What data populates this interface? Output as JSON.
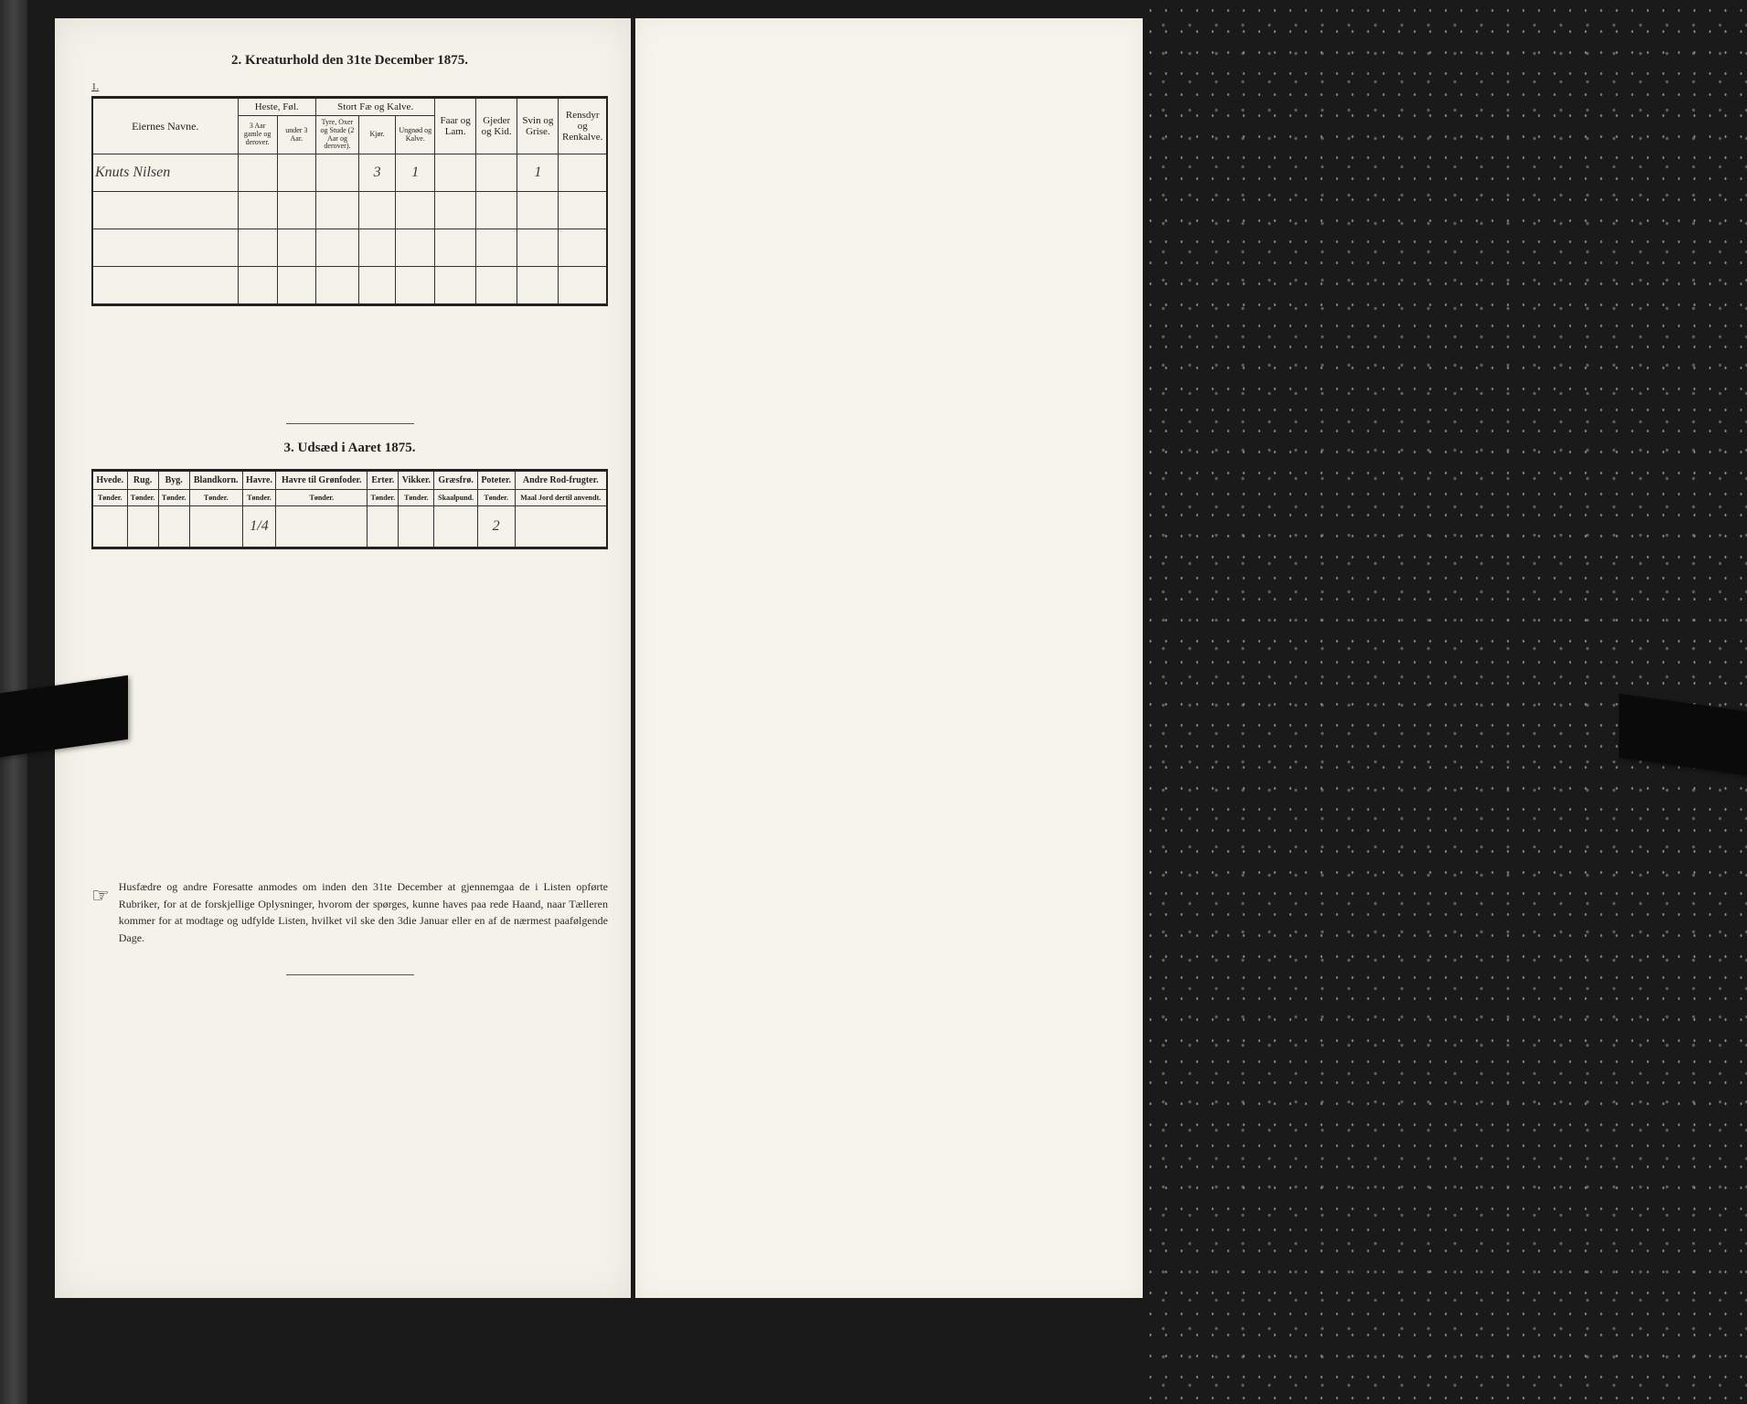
{
  "section2": {
    "title": "2.   Kreaturhold den 31te December 1875.",
    "corner": "1.",
    "headers": {
      "name": "Eiernes Navne.",
      "group_heste": "Heste, Føl.",
      "group_stort": "Stort Fæ og Kalve.",
      "heste_a": "3 Aar gamle og derover.",
      "heste_b": "under 3 Aar.",
      "stort_a": "Tyre, Oxer og Stude (2 Aar og derover).",
      "stort_b": "Kjør.",
      "stort_c": "Ungnød og Kalve.",
      "faar": "Faar og Lam.",
      "gjeder": "Gjeder og Kid.",
      "svin": "Svin og Grise.",
      "rensdyr": "Rensdyr og Renkalve."
    },
    "rows": [
      {
        "name": "Knuts Nilsen",
        "heste_a": "",
        "heste_b": "",
        "stort_a": "",
        "stort_b": "3",
        "stort_c": "1",
        "faar": "",
        "gjeder": "",
        "svin": "1",
        "rensdyr": ""
      },
      {
        "name": "",
        "heste_a": "",
        "heste_b": "",
        "stort_a": "",
        "stort_b": "",
        "stort_c": "",
        "faar": "",
        "gjeder": "",
        "svin": "",
        "rensdyr": ""
      },
      {
        "name": "",
        "heste_a": "",
        "heste_b": "",
        "stort_a": "",
        "stort_b": "",
        "stort_c": "",
        "faar": "",
        "gjeder": "",
        "svin": "",
        "rensdyr": ""
      },
      {
        "name": "",
        "heste_a": "",
        "heste_b": "",
        "stort_a": "",
        "stort_b": "",
        "stort_c": "",
        "faar": "",
        "gjeder": "",
        "svin": "",
        "rensdyr": ""
      }
    ]
  },
  "section3": {
    "title": "3.   Udsæd i Aaret 1875.",
    "columns": [
      {
        "label": "Hvede.",
        "unit": "Tønder."
      },
      {
        "label": "Rug.",
        "unit": "Tønder."
      },
      {
        "label": "Byg.",
        "unit": "Tønder."
      },
      {
        "label": "Blandkorn.",
        "unit": "Tønder."
      },
      {
        "label": "Havre.",
        "unit": "Tønder."
      },
      {
        "label": "Havre til Grønfoder.",
        "unit": "Tønder."
      },
      {
        "label": "Erter.",
        "unit": "Tønder."
      },
      {
        "label": "Vikker.",
        "unit": "Tønder."
      },
      {
        "label": "Græsfrø.",
        "unit": "Skaalpund."
      },
      {
        "label": "Poteter.",
        "unit": "Tønder."
      },
      {
        "label": "Andre Rod-frugter.",
        "unit": "Maal Jord dertil anvendt."
      }
    ],
    "row": [
      "",
      "",
      "",
      "",
      "1/4",
      "",
      "",
      "",
      "",
      "2",
      ""
    ]
  },
  "footer": {
    "text": "Husfædre og andre Foresatte anmodes om inden den 31te December at gjennemgaa de i Listen opførte Rubriker, for at de forskjellige Oplysninger, hvorom der spørges, kunne haves paa rede Haand, naar Tælleren kommer for at modtage og udfylde Listen, hvilket vil ske den 3die Januar eller en af de nærmest paafølgende Dage."
  }
}
